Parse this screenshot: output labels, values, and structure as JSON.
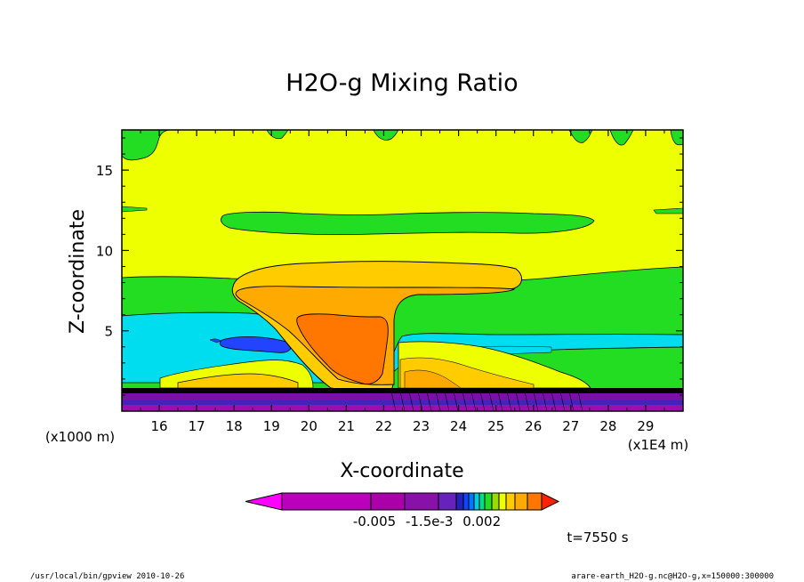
{
  "chart_data": {
    "type": "heatmap",
    "title": "H2O-g Mixing Ratio",
    "xlabel": "X-coordinate",
    "ylabel": "Z-coordinate",
    "x_unit": "(x1E4 m)",
    "y_unit": "(x1000 m)",
    "x_ticks": [
      "16",
      "17",
      "18",
      "19",
      "20",
      "21",
      "22",
      "23",
      "24",
      "25",
      "26",
      "27",
      "28",
      "29"
    ],
    "y_ticks": [
      "5",
      "10",
      "15"
    ],
    "xlim": [
      15.0,
      30.0
    ],
    "ylim": [
      0.0,
      17.5
    ],
    "colorbar_labels": [
      "-0.005",
      "-1.5e-3",
      "0.002"
    ],
    "colorbar_colors": [
      "#ff00ff",
      "#bb00bb",
      "#aa00aa",
      "#8811aa",
      "#6622bb",
      "#2222bb",
      "#1144ff",
      "#0077ff",
      "#00ccdd",
      "#00dd88",
      "#22dd22",
      "#99dd00",
      "#eeff00",
      "#ffcc00",
      "#ffaa00",
      "#ff7700",
      "#ff2200"
    ],
    "time": "t=7550 s",
    "colors": {
      "yellow": "#eeff00",
      "green": "#22dd22",
      "cyan": "#00ddee",
      "blue": "#2244ff",
      "gold": "#ffcc00",
      "orange": "#ffaa00",
      "dark_orange": "#ff7700",
      "purple": "#7711aa",
      "magenta": "#bb00bb"
    }
  },
  "footer": {
    "left": "/usr/local/bin/gpview  2010-10-26",
    "right": "arare-earth_H2O-g.nc@H2O-g,x=150000:300000"
  }
}
